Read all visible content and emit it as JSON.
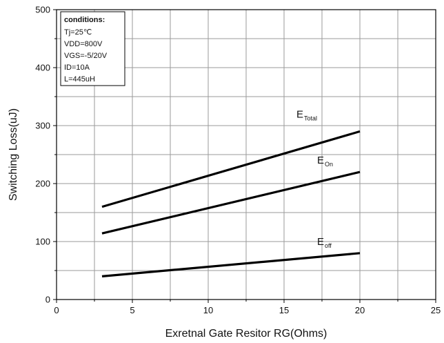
{
  "chart_data": {
    "type": "line",
    "title": "",
    "xlabel": "Exretnal Gate Resitor RG(Ohms)",
    "ylabel": "Switching Loss(uJ)",
    "xlim": [
      0,
      25
    ],
    "ylim": [
      0,
      500
    ],
    "xticks": [
      0,
      5,
      10,
      15,
      20,
      25
    ],
    "yticks": [
      0,
      100,
      200,
      300,
      400,
      500
    ],
    "grid": true,
    "series": [
      {
        "name": "E",
        "subscript": "Total",
        "x": [
          3,
          20
        ],
        "y": [
          160,
          290
        ],
        "color": "#000000"
      },
      {
        "name": "E",
        "subscript": "On",
        "x": [
          3,
          20
        ],
        "y": [
          114,
          220
        ],
        "color": "#000000"
      },
      {
        "name": "E",
        "subscript": "off",
        "x": [
          3,
          20
        ],
        "y": [
          40,
          80
        ],
        "color": "#000000"
      }
    ],
    "conditions": {
      "title": "conditions:",
      "lines": [
        "Tj=25℃",
        "VDD=800V",
        "VGS=-5/20V",
        "ID=10A",
        "L=445uH"
      ]
    }
  }
}
